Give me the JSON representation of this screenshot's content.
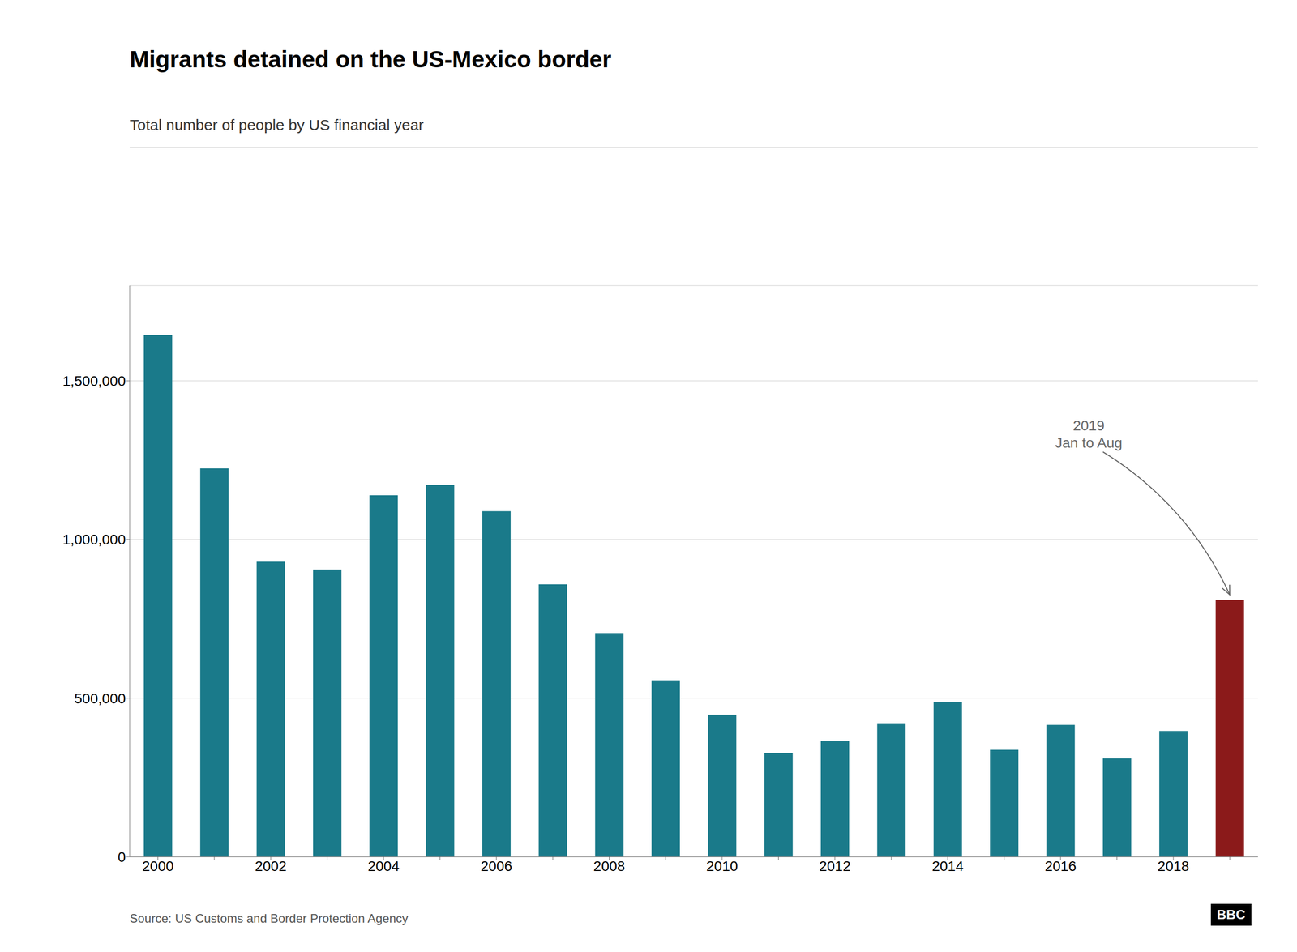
{
  "chart_data": {
    "type": "bar",
    "title": "Migrants detained on the US-Mexico border",
    "subtitle": "Total number of people by US financial year",
    "source": "Source: US Customs and Border Protection Agency",
    "logo": "BBC",
    "categories": [
      "2000",
      null,
      "2002",
      null,
      "2004",
      null,
      "2006",
      null,
      "2008",
      null,
      "2010",
      null,
      "2012",
      null,
      "2014",
      null,
      "2016",
      null,
      "2018",
      null
    ],
    "values": [
      1643679,
      1224047,
      929809,
      905065,
      1139282,
      1171396,
      1089096,
      858638,
      705005,
      556041,
      447731,
      327577,
      364768,
      420789,
      486651,
      337117,
      415816,
      310531,
      396579,
      810000
    ],
    "colors": [
      "#1a7a8a",
      "#1a7a8a",
      "#1a7a8a",
      "#1a7a8a",
      "#1a7a8a",
      "#1a7a8a",
      "#1a7a8a",
      "#1a7a8a",
      "#1a7a8a",
      "#1a7a8a",
      "#1a7a8a",
      "#1a7a8a",
      "#1a7a8a",
      "#1a7a8a",
      "#1a7a8a",
      "#1a7a8a",
      "#1a7a8a",
      "#1a7a8a",
      "#1a7a8a",
      "#8b1a1a"
    ],
    "annotation": {
      "text": "2019\nJan to Aug",
      "value": 810000
    },
    "ylim": [
      0,
      1800000
    ],
    "yticks": [
      0,
      {
        "value": 500000,
        "label": "500,000"
      },
      {
        "value": 1000000,
        "label": "1,000,000"
      },
      {
        "value": 1500000,
        "label": "1,500,000"
      }
    ],
    "grid": true
  }
}
